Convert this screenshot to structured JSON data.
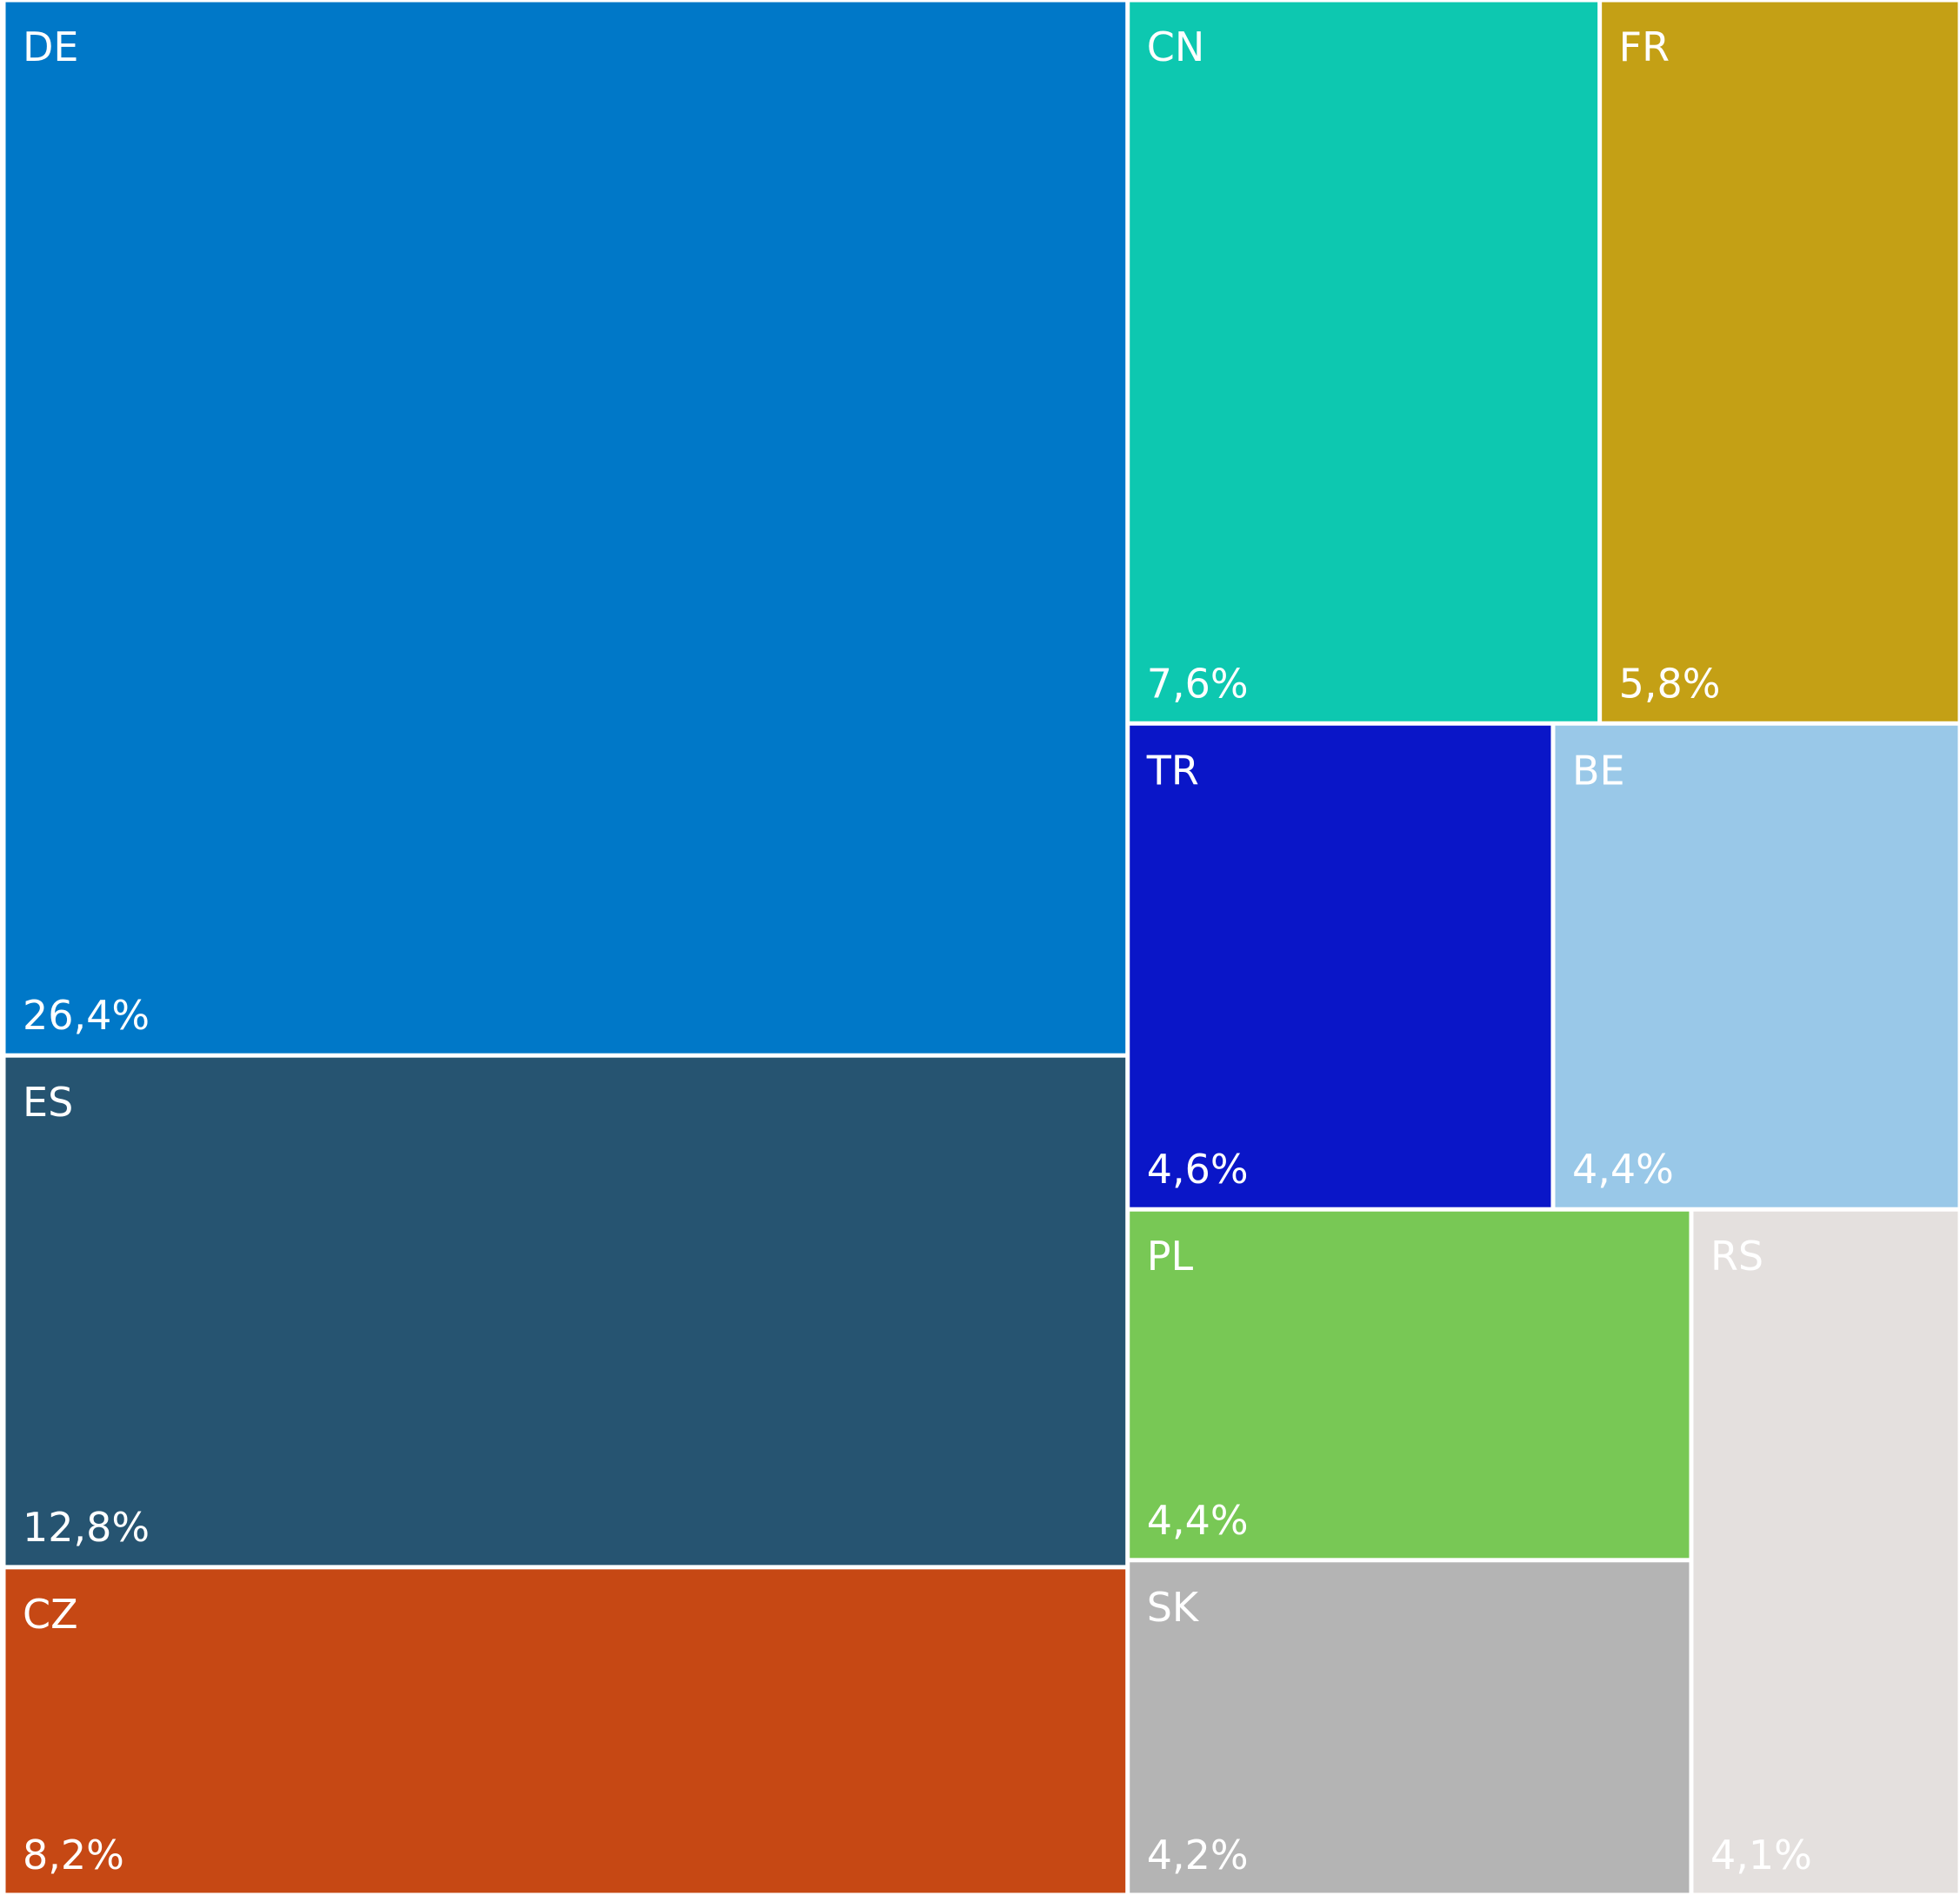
{
  "chart_data": {
    "type": "treemap",
    "categories": [
      "DE",
      "ES",
      "CZ",
      "CN",
      "FR",
      "TR",
      "BE",
      "PL",
      "SK",
      "RS"
    ],
    "values": [
      26.4,
      12.8,
      8.2,
      7.6,
      5.8,
      4.6,
      4.4,
      4.4,
      4.2,
      4.1
    ],
    "value_labels": [
      "26,4%",
      "12,8%",
      "8,2%",
      "7,6%",
      "5,8%",
      "4,6%",
      "4,4%",
      "4,4%",
      "4,2%",
      "4,1%"
    ],
    "colors": [
      "#0078c8",
      "#265471",
      "#c64814",
      "#0dc8b0",
      "#c4a015",
      "#0a16c8",
      "#99c8e8",
      "#78c855",
      "#b4b4b4",
      "#e4e0de"
    ]
  }
}
